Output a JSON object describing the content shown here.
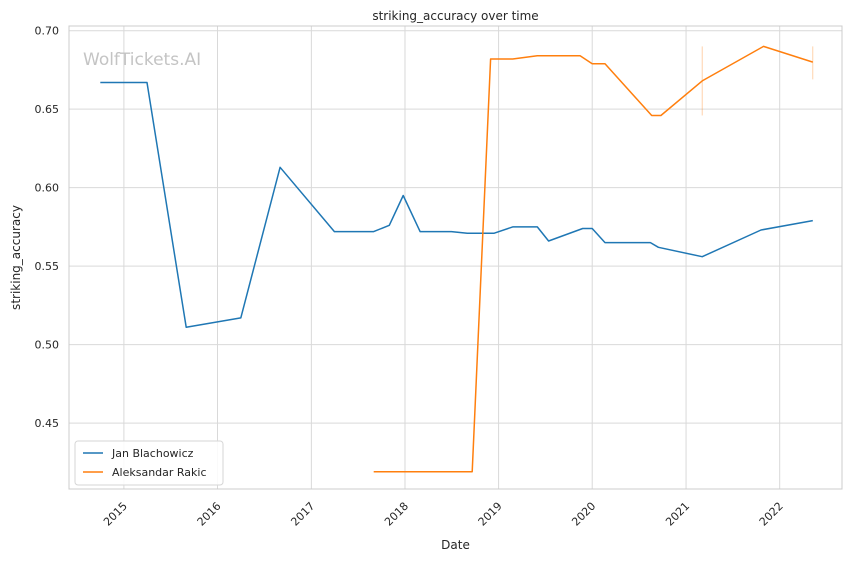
{
  "chart_data": {
    "type": "line",
    "title": "striking_accuracy over time",
    "xlabel": "Date",
    "ylabel": "striking_accuracy",
    "watermark": "WolfTickets.AI",
    "x_tick_labels": [
      "2015",
      "2016",
      "2017",
      "2018",
      "2019",
      "2020",
      "2021",
      "2022"
    ],
    "y_tick_labels": [
      "0.45",
      "0.50",
      "0.55",
      "0.60",
      "0.65",
      "0.70"
    ],
    "xlim": [
      "2014-06-01",
      "2022-09-01"
    ],
    "ylim": [
      0.408,
      0.703
    ],
    "grid": true,
    "legend_position": "lower-left",
    "series": [
      {
        "name": "Jan Blachowicz",
        "color": "#1f77b4",
        "points": [
          [
            "2014-10-01",
            0.667
          ],
          [
            "2015-04-01",
            0.667
          ],
          [
            "2015-09-01",
            0.511
          ],
          [
            "2016-04-01",
            0.517
          ],
          [
            "2016-09-01",
            0.613
          ],
          [
            "2017-04-01",
            0.572
          ],
          [
            "2017-09-01",
            0.572
          ],
          [
            "2017-11-01",
            0.576
          ],
          [
            "2017-12-25",
            0.595
          ],
          [
            "2018-03-01",
            0.572
          ],
          [
            "2018-07-01",
            0.572
          ],
          [
            "2018-09-01",
            0.571
          ],
          [
            "2018-12-15",
            0.571
          ],
          [
            "2019-02-25",
            0.575
          ],
          [
            "2019-06-01",
            0.575
          ],
          [
            "2019-07-15",
            0.566
          ],
          [
            "2019-11-25",
            0.574
          ],
          [
            "2020-01-01",
            0.574
          ],
          [
            "2020-02-20",
            0.565
          ],
          [
            "2020-08-15",
            0.565
          ],
          [
            "2020-09-15",
            0.562
          ],
          [
            "2021-03-05",
            0.556
          ],
          [
            "2021-10-20",
            0.573
          ],
          [
            "2022-05-10",
            0.579
          ]
        ]
      },
      {
        "name": "Aleksandar Rakic",
        "color": "#ff7f0e",
        "points": [
          [
            "2017-09-01",
            0.419
          ],
          [
            "2018-09-20",
            0.419
          ],
          [
            "2018-12-01",
            0.682
          ],
          [
            "2019-02-25",
            0.682
          ],
          [
            "2019-06-01",
            0.684
          ],
          [
            "2019-11-15",
            0.684
          ],
          [
            "2020-01-01",
            0.679
          ],
          [
            "2020-02-20",
            0.679
          ],
          [
            "2020-08-20",
            0.646
          ],
          [
            "2020-09-25",
            0.646
          ],
          [
            "2021-03-05",
            0.668
          ],
          [
            "2021-10-30",
            0.69
          ],
          [
            "2022-05-10",
            0.68
          ]
        ],
        "error_bars": [
          {
            "x": "2021-03-05",
            "low": 0.646,
            "high": 0.69
          },
          {
            "x": "2022-05-10",
            "low": 0.669,
            "high": 0.69
          }
        ]
      }
    ]
  }
}
